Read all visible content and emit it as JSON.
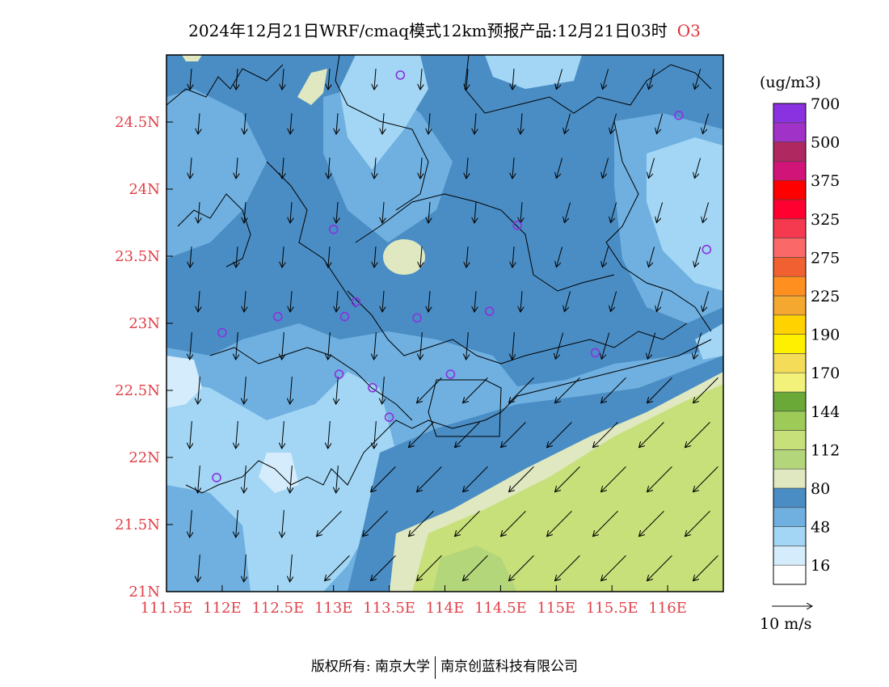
{
  "title": {
    "main": "2024年12月21日WRF/cmaq模式12km预报产品:12月21日03时",
    "species": "O3"
  },
  "colors": {
    "species": "#e0303a",
    "tick_labels": "#e04048",
    "border_lines": "#000000"
  },
  "map": {
    "lon_range": [
      111.5,
      116.5
    ],
    "lat_range": [
      21.0,
      25.0
    ],
    "x_ticks": [
      111.5,
      112,
      112.5,
      113,
      113.5,
      114,
      114.5,
      115,
      115.5,
      116
    ],
    "x_tick_labels": [
      "111.5E",
      "112E",
      "112.5E",
      "113E",
      "113.5E",
      "114E",
      "114.5E",
      "115E",
      "115.5E",
      "116E"
    ],
    "y_ticks": [
      21,
      21.5,
      22,
      22.5,
      23,
      23.5,
      24,
      24.5
    ],
    "y_tick_labels": [
      "21N",
      "21.5N",
      "22N",
      "22.5N",
      "23N",
      "23.5N",
      "24N",
      "24.5N"
    ],
    "stations": [
      [
        113.6,
        24.85
      ],
      [
        116.1,
        24.55
      ],
      [
        113.0,
        23.7
      ],
      [
        114.65,
        23.73
      ],
      [
        116.35,
        23.55
      ],
      [
        112.5,
        23.05
      ],
      [
        112.0,
        22.93
      ],
      [
        113.1,
        23.05
      ],
      [
        113.2,
        23.16
      ],
      [
        113.75,
        23.04
      ],
      [
        114.4,
        23.09
      ],
      [
        115.35,
        22.78
      ],
      [
        113.05,
        22.62
      ],
      [
        113.35,
        22.52
      ],
      [
        114.05,
        22.62
      ],
      [
        113.5,
        22.3
      ],
      [
        111.95,
        21.85
      ]
    ],
    "wind_note": "wind vectors mostly from north-east"
  },
  "legend": {
    "units": "(ug/m3)",
    "labels": [
      "16",
      "48",
      "80",
      "112",
      "144",
      "170",
      "190",
      "225",
      "275",
      "325",
      "375",
      "500",
      "700"
    ],
    "colors": [
      "#ffffff",
      "#d4ecfb",
      "#a2d6f4",
      "#6fb0e0",
      "#4a8dc4",
      "#dfe8c0",
      "#b4d67a",
      "#c8e07a",
      "#9ecb58",
      "#6aa838",
      "#f2f27a",
      "#f4dc58",
      "#fff000",
      "#ffd200",
      "#f5a830",
      "#ff9020",
      "#f06030",
      "#fa6868",
      "#f53a50",
      "#ff0030",
      "#ff0000",
      "#d01478",
      "#b02860",
      "#a032c8",
      "#8a32e0"
    ],
    "vector_label": "10 m/s"
  },
  "footer": {
    "copyright": "版权所有: 南京大学",
    "company": "南京创蓝科技有限公司"
  }
}
